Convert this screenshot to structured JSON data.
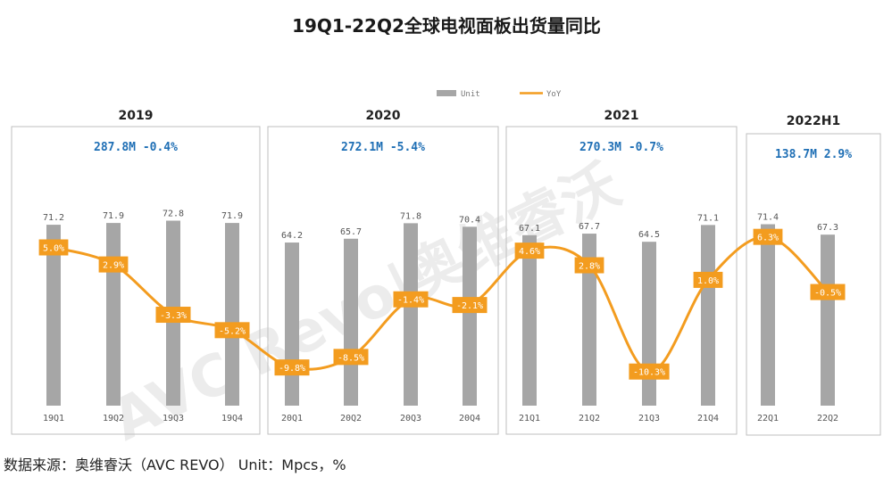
{
  "chart_data": {
    "type": "bar",
    "title": "19Q1-22Q2全球电视面板出货量同比",
    "categories": [
      "19Q1",
      "19Q2",
      "19Q3",
      "19Q4",
      "20Q1",
      "20Q2",
      "20Q3",
      "20Q4",
      "21Q1",
      "21Q2",
      "21Q3",
      "21Q4",
      "22Q1",
      "22Q2"
    ],
    "series": [
      {
        "name": "Unit",
        "type": "bar",
        "color": "#a6a6a6",
        "values": [
          71.2,
          71.9,
          72.8,
          71.9,
          64.2,
          65.7,
          71.8,
          70.4,
          67.1,
          67.7,
          64.5,
          71.1,
          71.4,
          67.3
        ],
        "labels": [
          "71.2",
          "71.9",
          "72.8",
          "71.9",
          "64.2",
          "65.7",
          "71.8",
          "70.4",
          "67.1",
          "67.7",
          "64.5",
          "71.1",
          "71.4",
          "67.3"
        ]
      },
      {
        "name": "YoY",
        "type": "line",
        "color": "#f39c1f",
        "values": [
          5.0,
          2.9,
          -3.3,
          -5.2,
          -9.8,
          -8.5,
          -1.4,
          -2.1,
          4.6,
          2.8,
          -10.3,
          1.0,
          6.3,
          -0.5
        ],
        "labels": [
          "5.0%",
          "2.9%",
          "-3.3%",
          "-5.2%",
          "-9.8%",
          "-8.5%",
          "-1.4%",
          "-2.1%",
          "4.6%",
          "2.8%",
          "-10.3%",
          "1.0%",
          "6.3%",
          "-0.5%"
        ]
      }
    ],
    "groups": [
      {
        "label": "2019",
        "summary": "287.8M -0.4%",
        "start": 0,
        "end": 3
      },
      {
        "label": "2020",
        "summary": "272.1M -5.4%",
        "start": 4,
        "end": 7
      },
      {
        "label": "2021",
        "summary": "270.3M -0.7%",
        "start": 8,
        "end": 11
      },
      {
        "label": "2022H1",
        "summary": "138.7M 2.9%",
        "start": 12,
        "end": 13
      }
    ],
    "legend": {
      "position": "top-right",
      "items": [
        "Unit",
        "YoY"
      ]
    },
    "grid": false,
    "watermark": "AVC Revo|奥维睿沃"
  },
  "source_note": "数据来源：奥维睿沃（AVC REVO）   Unit：Mpcs，%"
}
